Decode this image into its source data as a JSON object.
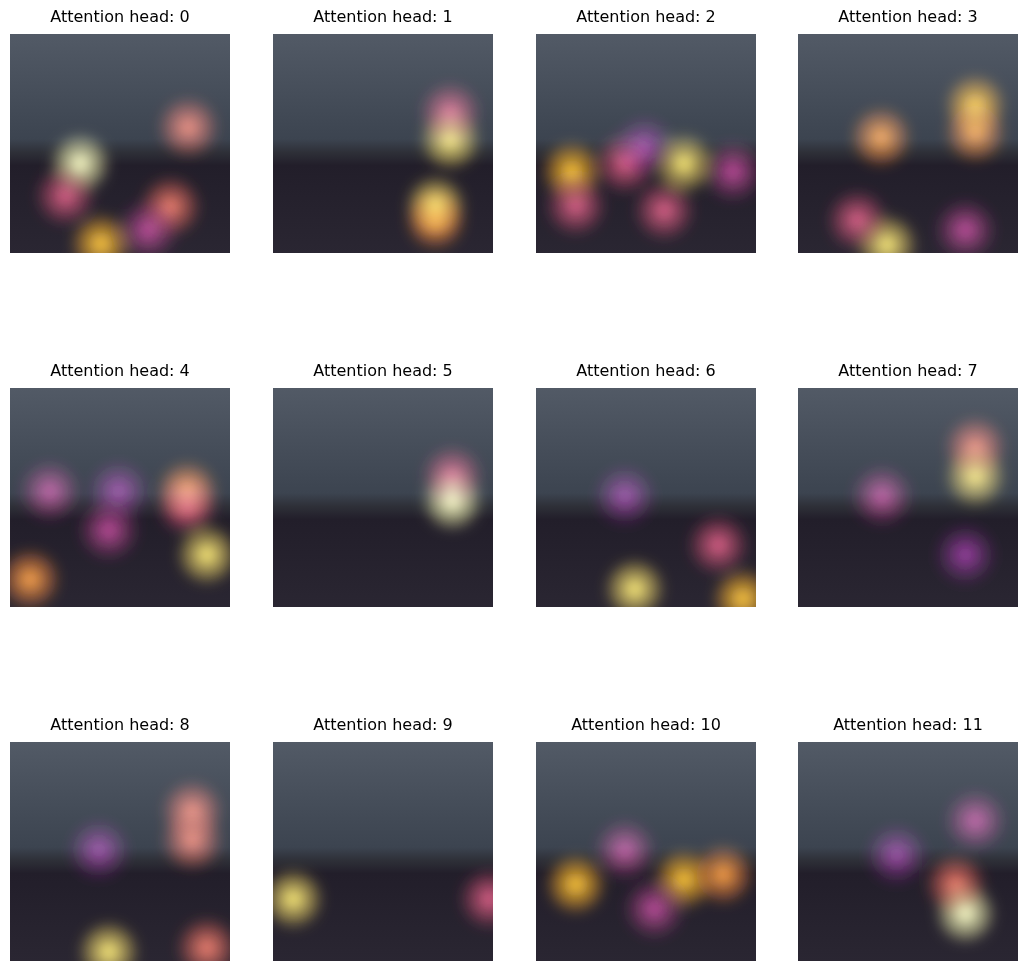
{
  "chart_data": [
    {
      "type": "heatmap",
      "title": "Attention head: 0",
      "x": [
        71,
        181,
        163,
        92,
        56,
        140
      ],
      "y": [
        132,
        95,
        176,
        214,
        165,
        200
      ],
      "values": [
        1.0,
        0.6,
        0.6,
        0.8,
        0.5,
        0.4
      ],
      "xlim": [
        0,
        224
      ],
      "ylim": [
        224,
        0
      ],
      "zlim": [
        0,
        1
      ],
      "tick_labels": false
    },
    {
      "type": "heatmap",
      "title": "Attention head: 1",
      "x": [
        180,
        180,
        165,
        165
      ],
      "y": [
        108,
        80,
        175,
        190
      ],
      "values": [
        0.9,
        0.5,
        0.9,
        0.7
      ],
      "xlim": [
        0,
        224
      ],
      "ylim": [
        224,
        0
      ],
      "zlim": [
        0,
        1
      ],
      "tick_labels": false
    },
    {
      "type": "heatmap",
      "title": "Attention head: 2",
      "x": [
        36,
        150,
        90,
        130,
        40,
        200,
        110
      ],
      "y": [
        140,
        132,
        132,
        180,
        175,
        140,
        115
      ],
      "values": [
        0.8,
        0.9,
        0.5,
        0.5,
        0.5,
        0.4,
        0.3
      ],
      "xlim": [
        0,
        224
      ],
      "ylim": [
        224,
        0
      ],
      "zlim": [
        0,
        1
      ],
      "tick_labels": false
    },
    {
      "type": "heatmap",
      "title": "Attention head: 3",
      "x": [
        180,
        180,
        84,
        90,
        60,
        170
      ],
      "y": [
        72,
        100,
        105,
        215,
        190,
        200
      ],
      "values": [
        0.8,
        0.7,
        0.7,
        0.9,
        0.5,
        0.4
      ],
      "xlim": [
        0,
        224
      ],
      "ylim": [
        224,
        0
      ],
      "zlim": [
        0,
        1
      ],
      "tick_labels": false
    },
    {
      "type": "heatmap",
      "title": "Attention head: 4",
      "x": [
        40,
        110,
        180,
        200,
        20,
        100,
        180
      ],
      "y": [
        105,
        105,
        105,
        170,
        195,
        145,
        120
      ],
      "values": [
        0.4,
        0.3,
        0.7,
        0.9,
        0.7,
        0.4,
        0.5
      ],
      "xlim": [
        0,
        224
      ],
      "ylim": [
        224,
        0
      ],
      "zlim": [
        0,
        1
      ],
      "tick_labels": false
    },
    {
      "type": "heatmap",
      "title": "Attention head: 5",
      "x": [
        182,
        182
      ],
      "y": [
        115,
        90
      ],
      "values": [
        1.0,
        0.5
      ],
      "xlim": [
        0,
        224
      ],
      "ylim": [
        224,
        0
      ],
      "zlim": [
        0,
        1
      ],
      "tick_labels": false
    },
    {
      "type": "heatmap",
      "title": "Attention head: 6",
      "x": [
        100,
        210,
        185,
        90
      ],
      "y": [
        205,
        215,
        160,
        110
      ],
      "values": [
        0.9,
        0.8,
        0.5,
        0.3
      ],
      "xlim": [
        0,
        224
      ],
      "ylim": [
        224,
        0
      ],
      "zlim": [
        0,
        1
      ],
      "tick_labels": false
    },
    {
      "type": "heatmap",
      "title": "Attention head: 7",
      "x": [
        180,
        180,
        85,
        170
      ],
      "y": [
        90,
        60,
        110,
        170
      ],
      "values": [
        0.9,
        0.6,
        0.4,
        0.3
      ],
      "xlim": [
        0,
        224
      ],
      "ylim": [
        224,
        0
      ],
      "zlim": [
        0,
        1
      ],
      "tick_labels": false
    },
    {
      "type": "heatmap",
      "title": "Attention head: 8",
      "x": [
        185,
        185,
        100,
        200,
        90
      ],
      "y": [
        70,
        100,
        214,
        210,
        110
      ],
      "values": [
        0.6,
        0.6,
        0.9,
        0.6,
        0.3
      ],
      "xlim": [
        0,
        224
      ],
      "ylim": [
        224,
        0
      ],
      "zlim": [
        0,
        1
      ],
      "tick_labels": false
    },
    {
      "type": "heatmap",
      "title": "Attention head: 9",
      "x": [
        20,
        220
      ],
      "y": [
        160,
        160
      ],
      "values": [
        0.9,
        0.5
      ],
      "xlim": [
        0,
        224
      ],
      "ylim": [
        224,
        0
      ],
      "zlim": [
        0,
        1
      ],
      "tick_labels": false
    },
    {
      "type": "heatmap",
      "title": "Attention head: 10",
      "x": [
        40,
        150,
        190,
        90,
        120
      ],
      "y": [
        145,
        140,
        135,
        110,
        170
      ],
      "values": [
        0.8,
        0.8,
        0.7,
        0.4,
        0.4
      ],
      "xlim": [
        0,
        224
      ],
      "ylim": [
        224,
        0
      ],
      "zlim": [
        0,
        1
      ],
      "tick_labels": false
    },
    {
      "type": "heatmap",
      "title": "Attention head: 11",
      "x": [
        170,
        180,
        160,
        100
      ],
      "y": [
        175,
        80,
        145,
        115
      ],
      "values": [
        1.0,
        0.4,
        0.6,
        0.3
      ],
      "xlim": [
        0,
        224
      ],
      "ylim": [
        224,
        0
      ],
      "zlim": [
        0,
        1
      ],
      "tick_labels": false
    }
  ]
}
